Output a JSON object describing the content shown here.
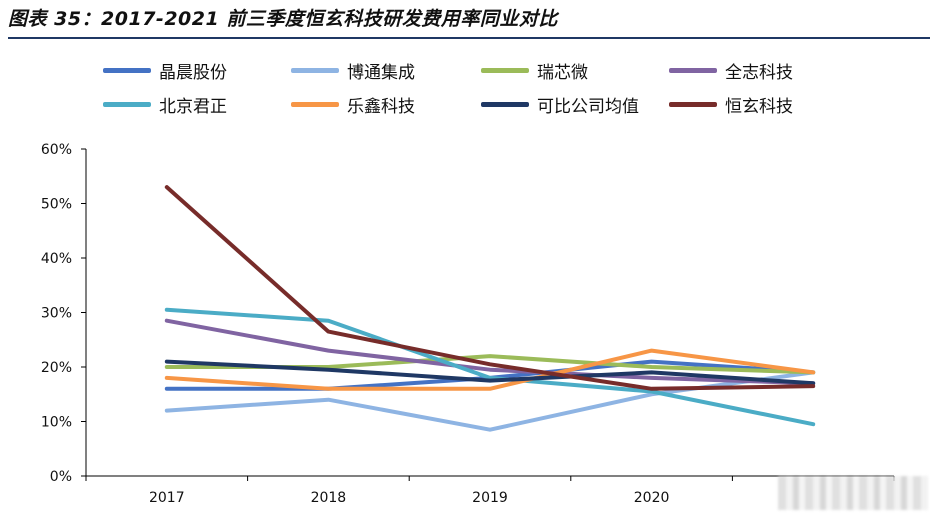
{
  "figure_title": "图表 35：2017-2021 前三季度恒玄科技研发费用率同业对比",
  "chart_data": {
    "type": "line",
    "title": "图表 35：2017-2021 前三季度恒玄科技研发费用率同业对比",
    "categories": [
      "2017",
      "2018",
      "2019",
      "2020",
      ""
    ],
    "xlabel": "",
    "ylabel": "",
    "ylim": [
      0,
      0.6
    ],
    "yticks": [
      0,
      0.1,
      0.2,
      0.3,
      0.4,
      0.5,
      0.6
    ],
    "ytick_labels": [
      "0%",
      "10%",
      "20%",
      "30%",
      "40%",
      "50%",
      "60%"
    ],
    "grid": false,
    "legend_position": "top",
    "series": [
      {
        "name": "晶晨股份",
        "color": "#4472c4",
        "values": [
          0.16,
          0.16,
          0.18,
          0.21,
          0.19
        ]
      },
      {
        "name": "博通集成",
        "color": "#8eb4e3",
        "values": [
          0.12,
          0.14,
          0.085,
          0.15,
          0.19
        ]
      },
      {
        "name": "瑞芯微",
        "color": "#9bbb59",
        "values": [
          0.2,
          0.2,
          0.22,
          0.2,
          0.19
        ]
      },
      {
        "name": "全志科技",
        "color": "#8064a2",
        "values": [
          0.285,
          0.23,
          0.195,
          0.18,
          0.17
        ]
      },
      {
        "name": "北京君正",
        "color": "#4bacc6",
        "values": [
          0.305,
          0.285,
          0.18,
          0.155,
          0.095
        ]
      },
      {
        "name": "乐鑫科技",
        "color": "#f79646",
        "values": [
          0.18,
          0.16,
          0.16,
          0.23,
          0.19
        ]
      },
      {
        "name": "可比公司均值",
        "color": "#1f3864",
        "values": [
          0.21,
          0.195,
          0.175,
          0.19,
          0.17
        ]
      },
      {
        "name": "恒玄科技",
        "color": "#772c2a",
        "values": [
          0.53,
          0.265,
          0.205,
          0.16,
          0.165
        ]
      }
    ]
  }
}
